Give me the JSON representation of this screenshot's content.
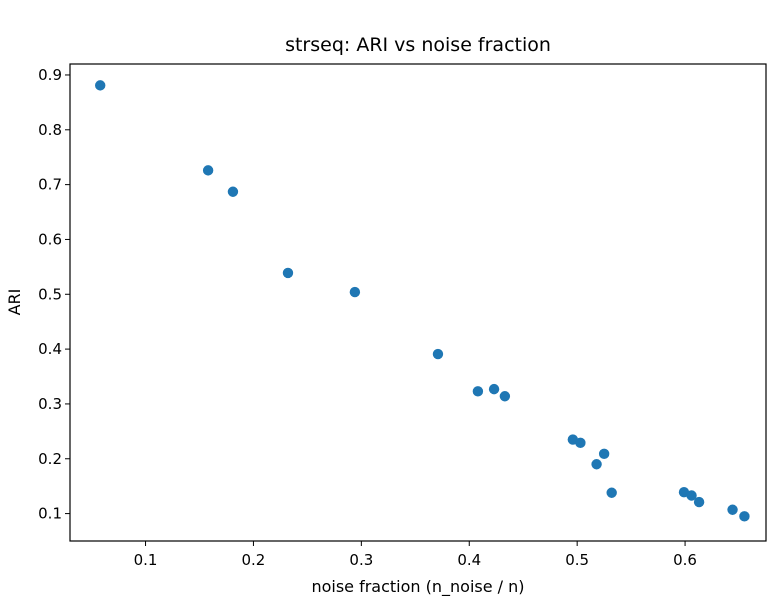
{
  "chart_data": {
    "type": "scatter",
    "title": "strseq: ARI vs noise fraction",
    "xlabel": "noise fraction (n_noise / n)",
    "ylabel": "ARI",
    "xlim": [
      0.03,
      0.675
    ],
    "ylim": [
      0.05,
      0.92
    ],
    "xticks": [
      0.1,
      0.2,
      0.3,
      0.4,
      0.5,
      0.6
    ],
    "yticks": [
      0.1,
      0.2,
      0.3,
      0.4,
      0.5,
      0.6,
      0.7,
      0.8,
      0.9
    ],
    "xtick_labels": [
      "0.1",
      "0.2",
      "0.3",
      "0.4",
      "0.5",
      "0.6"
    ],
    "ytick_labels": [
      "0.1",
      "0.2",
      "0.3",
      "0.4",
      "0.5",
      "0.6",
      "0.7",
      "0.8",
      "0.9"
    ],
    "grid": false,
    "legend": "none",
    "color": "#1f77b4",
    "points": [
      {
        "x": 0.058,
        "y": 0.881
      },
      {
        "x": 0.158,
        "y": 0.726
      },
      {
        "x": 0.181,
        "y": 0.687
      },
      {
        "x": 0.232,
        "y": 0.539
      },
      {
        "x": 0.294,
        "y": 0.504
      },
      {
        "x": 0.371,
        "y": 0.391
      },
      {
        "x": 0.408,
        "y": 0.323
      },
      {
        "x": 0.423,
        "y": 0.327
      },
      {
        "x": 0.433,
        "y": 0.314
      },
      {
        "x": 0.496,
        "y": 0.235
      },
      {
        "x": 0.503,
        "y": 0.229
      },
      {
        "x": 0.518,
        "y": 0.19
      },
      {
        "x": 0.525,
        "y": 0.209
      },
      {
        "x": 0.532,
        "y": 0.138
      },
      {
        "x": 0.599,
        "y": 0.139
      },
      {
        "x": 0.606,
        "y": 0.133
      },
      {
        "x": 0.613,
        "y": 0.121
      },
      {
        "x": 0.644,
        "y": 0.107
      },
      {
        "x": 0.655,
        "y": 0.095
      }
    ]
  }
}
